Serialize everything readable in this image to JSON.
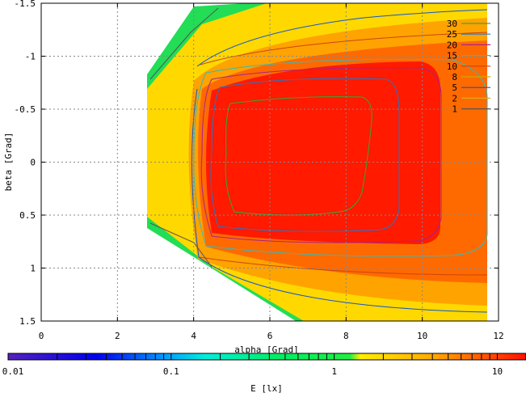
{
  "chart_data": {
    "type": "heatmap",
    "xlabel": "alpha [Grad]",
    "ylabel": "beta [Grad]",
    "xlim": [
      0,
      12
    ],
    "ylim": [
      1.5,
      -1.5
    ],
    "x_ticks": [
      {
        "v": 0,
        "label": "0"
      },
      {
        "v": 2,
        "label": "2"
      },
      {
        "v": 4,
        "label": "4"
      },
      {
        "v": 6,
        "label": "6"
      },
      {
        "v": 8,
        "label": "8"
      },
      {
        "v": 10,
        "label": "10"
      },
      {
        "v": 12,
        "label": "12"
      }
    ],
    "y_ticks": [
      {
        "v": -1.5,
        "label": "-1.5"
      },
      {
        "v": -1,
        "label": "-1"
      },
      {
        "v": -0.5,
        "label": "-0.5"
      },
      {
        "v": 0,
        "label": "0"
      },
      {
        "v": 0.5,
        "label": "0.5"
      },
      {
        "v": 1,
        "label": "1"
      },
      {
        "v": 1.5,
        "label": "1.5"
      }
    ],
    "grid": true,
    "colorbar": {
      "label": "E [lx]",
      "scale": "log",
      "range": [
        0.01,
        15
      ],
      "ticks": [
        {
          "v": 0.01,
          "label": "0.01"
        },
        {
          "v": 0.1,
          "label": "0.1"
        },
        {
          "v": 1,
          "label": "1"
        },
        {
          "v": 10,
          "label": "10"
        }
      ]
    },
    "contour_levels": [
      {
        "label": "30",
        "color": "#33aa33"
      },
      {
        "label": "25",
        "color": "#2277cc"
      },
      {
        "label": "20",
        "color": "#aa2288"
      },
      {
        "label": "15",
        "color": "#33bbbb"
      },
      {
        "label": "10",
        "color": "#cc4411"
      },
      {
        "label": "8",
        "color": "#ccaa00"
      },
      {
        "label": "5",
        "color": "#1155cc"
      },
      {
        "label": "2",
        "color": "#ddaa22"
      },
      {
        "label": "1",
        "color": "#555555"
      }
    ],
    "legend_position": "top-right"
  }
}
